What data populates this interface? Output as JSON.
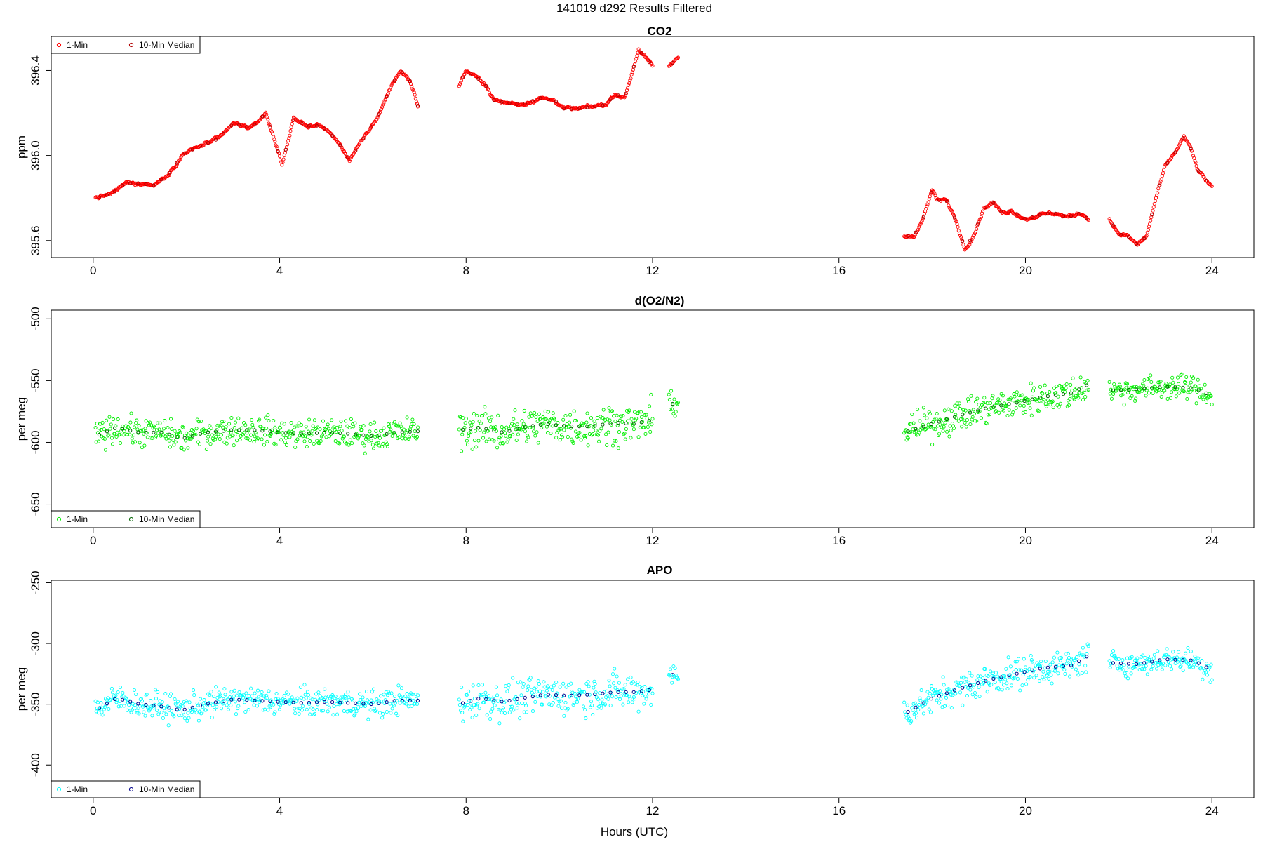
{
  "figure": {
    "title": "141019   d292   Results Filtered",
    "xlabel": "Hours (UTC)"
  },
  "colors": {
    "co2_1min": "#ff0000",
    "co2_median": "#b00000",
    "o2_1min": "#00ee00",
    "o2_median": "#006400",
    "apo_1min": "#00ffff",
    "apo_median": "#00008b"
  },
  "chart_data": [
    {
      "type": "scatter",
      "title": "CO2",
      "xlabel": "",
      "ylabel": "ppm",
      "xlim": [
        -0.9,
        24.9
      ],
      "ylim": [
        395.52,
        396.56
      ],
      "xticks": [
        0,
        4,
        8,
        12,
        16,
        20,
        24
      ],
      "yticks": [
        395.6,
        396.0,
        396.4
      ],
      "ytick_labels": [
        "395.6",
        "396.0",
        "396.4"
      ],
      "legend": {
        "position": "top-left",
        "entries": [
          "1-Min",
          "10-Min Median"
        ]
      },
      "grid": false,
      "series": [
        {
          "name": "1-Min",
          "color": "#ff0000",
          "noise": 0.004,
          "x": [
            0.05,
            0.4,
            0.7,
            1.0,
            1.3,
            1.6,
            1.95,
            2.35,
            2.7,
            3.0,
            3.4,
            3.7,
            3.85,
            4.05,
            4.3,
            4.6,
            4.9,
            5.2,
            5.5,
            5.8,
            6.1,
            6.4,
            6.6,
            6.8,
            6.97
          ],
          "y": [
            395.8,
            395.82,
            395.87,
            395.87,
            395.86,
            395.91,
            396.01,
            396.05,
            396.08,
            396.15,
            396.13,
            396.2,
            396.1,
            395.96,
            396.17,
            396.14,
            396.14,
            396.08,
            395.98,
            396.08,
            396.18,
            396.33,
            396.4,
            396.35,
            396.23
          ]
        },
        {
          "name": "1-Min",
          "color": "#ff0000",
          "noise": 0.004,
          "x": [
            7.85,
            8.0,
            8.2,
            8.4,
            8.6,
            8.8,
            9.2,
            9.6,
            9.9,
            10.1,
            10.4,
            10.7,
            11.0,
            11.2,
            11.4,
            11.55,
            11.7,
            11.85,
            12.0
          ],
          "y": [
            396.33,
            396.4,
            396.37,
            396.34,
            396.26,
            396.25,
            396.24,
            396.27,
            396.26,
            396.22,
            396.22,
            396.23,
            396.24,
            396.29,
            396.27,
            396.38,
            396.5,
            396.46,
            396.42
          ]
        },
        {
          "name": "1-Min",
          "color": "#ff0000",
          "noise": 0.003,
          "x": [
            12.35,
            12.45,
            12.55
          ],
          "y": [
            396.42,
            396.44,
            396.46
          ]
        },
        {
          "name": "1-Min",
          "color": "#ff0000",
          "noise": 0.004,
          "x": [
            17.4,
            17.6,
            17.8,
            18.0,
            18.1,
            18.3,
            18.5,
            18.7,
            18.9,
            19.1,
            19.3,
            19.5,
            19.7,
            20.0,
            20.3,
            20.6,
            20.9,
            21.2,
            21.35
          ],
          "y": [
            395.62,
            395.62,
            395.7,
            395.84,
            395.79,
            395.79,
            395.7,
            395.56,
            395.63,
            395.75,
            395.78,
            395.73,
            395.74,
            395.7,
            395.72,
            395.73,
            395.71,
            395.73,
            395.7
          ]
        },
        {
          "name": "1-Min",
          "color": "#ff0000",
          "noise": 0.004,
          "x": [
            21.8,
            22.0,
            22.2,
            22.4,
            22.6,
            22.8,
            23.0,
            23.2,
            23.4,
            23.55,
            23.7,
            23.85,
            24.0
          ],
          "y": [
            395.7,
            395.63,
            395.62,
            395.58,
            395.62,
            395.8,
            395.95,
            396.01,
            396.09,
            396.03,
            395.93,
            395.89,
            395.85
          ]
        }
      ]
    },
    {
      "type": "scatter",
      "title": "d(O2/N2)",
      "xlabel": "",
      "ylabel": "per meg",
      "xlim": [
        -0.9,
        24.9
      ],
      "ylim": [
        -669,
        -493
      ],
      "xticks": [
        0,
        4,
        8,
        12,
        16,
        20,
        24
      ],
      "yticks": [
        -650,
        -600,
        -550,
        -500
      ],
      "ytick_labels": [
        "-650",
        "-600",
        "-550",
        "-500"
      ],
      "legend": {
        "position": "bottom-left",
        "entries": [
          "1-Min",
          "10-Min Median"
        ]
      },
      "grid": false,
      "series": [
        {
          "name": "1-Min",
          "color": "#00ee00",
          "noise": 8,
          "x": [
            0.05,
            0.5,
            1.0,
            1.5,
            1.9,
            2.4,
            3.0,
            3.5,
            4.0,
            4.5,
            5.0,
            5.5,
            6.0,
            6.5,
            6.97
          ],
          "y": [
            -595,
            -588,
            -592,
            -592,
            -597,
            -592,
            -590,
            -590,
            -592,
            -593,
            -592,
            -593,
            -595,
            -592,
            -591
          ]
        },
        {
          "name": "1-Min",
          "color": "#00ee00",
          "noise": 11,
          "x": [
            7.85,
            8.3,
            8.8,
            9.2,
            9.7,
            10.2,
            10.7,
            11.2,
            11.6,
            12.0
          ],
          "y": [
            -590,
            -588,
            -592,
            -588,
            -585,
            -587,
            -587,
            -584,
            -585,
            -582
          ]
        },
        {
          "name": "1-Min",
          "color": "#00ee00",
          "noise": 6,
          "x": [
            12.35,
            12.55
          ],
          "y": [
            -568,
            -570
          ]
        },
        {
          "name": "1-Min",
          "color": "#00ee00",
          "noise": 9,
          "x": [
            17.4,
            18.0,
            18.6,
            19.2,
            19.8,
            20.4,
            21.0,
            21.35
          ],
          "y": [
            -592,
            -585,
            -578,
            -572,
            -568,
            -563,
            -560,
            -553
          ]
        },
        {
          "name": "1-Min",
          "color": "#00ee00",
          "noise": 7,
          "x": [
            21.8,
            22.4,
            23.0,
            23.6,
            24.0
          ],
          "y": [
            -558,
            -557,
            -555,
            -556,
            -562
          ]
        }
      ]
    },
    {
      "type": "scatter",
      "title": "APO",
      "xlabel": "Hours (UTC)",
      "ylabel": "per meg",
      "xlim": [
        -0.9,
        24.9
      ],
      "ylim": [
        -427,
        -248
      ],
      "xticks": [
        0,
        4,
        8,
        12,
        16,
        20,
        24
      ],
      "yticks": [
        -400,
        -350,
        -300,
        -250
      ],
      "ytick_labels": [
        "-400",
        "-350",
        "-300",
        "-250"
      ],
      "legend": {
        "position": "bottom-left",
        "entries": [
          "1-Min",
          "10-Min Median"
        ]
      },
      "grid": false,
      "series": [
        {
          "name": "1-Min",
          "color": "#00ffff",
          "noise": 8,
          "x": [
            0.05,
            0.5,
            1.0,
            1.5,
            1.9,
            2.4,
            3.0,
            3.5,
            4.0,
            4.5,
            5.0,
            5.5,
            6.0,
            6.5,
            6.97
          ],
          "y": [
            -355,
            -345,
            -350,
            -352,
            -355,
            -350,
            -346,
            -347,
            -348,
            -349,
            -348,
            -349,
            -350,
            -347,
            -347
          ]
        },
        {
          "name": "1-Min",
          "color": "#00ffff",
          "noise": 11,
          "x": [
            7.85,
            8.3,
            8.8,
            9.2,
            9.7,
            10.2,
            10.7,
            11.2,
            11.6,
            12.0
          ],
          "y": [
            -350,
            -345,
            -348,
            -345,
            -342,
            -343,
            -342,
            -340,
            -340,
            -338
          ]
        },
        {
          "name": "1-Min",
          "color": "#00ffff",
          "noise": 6,
          "x": [
            12.35,
            12.55
          ],
          "y": [
            -325,
            -327
          ]
        },
        {
          "name": "1-Min",
          "color": "#00ffff",
          "noise": 9,
          "x": [
            17.4,
            18.0,
            18.6,
            19.2,
            19.8,
            20.4,
            21.0,
            21.35
          ],
          "y": [
            -358,
            -345,
            -337,
            -330,
            -325,
            -320,
            -318,
            -310
          ]
        },
        {
          "name": "1-Min",
          "color": "#00ffff",
          "noise": 7,
          "x": [
            21.8,
            22.4,
            23.0,
            23.6,
            24.0
          ],
          "y": [
            -316,
            -317,
            -313,
            -314,
            -322
          ]
        }
      ]
    }
  ]
}
